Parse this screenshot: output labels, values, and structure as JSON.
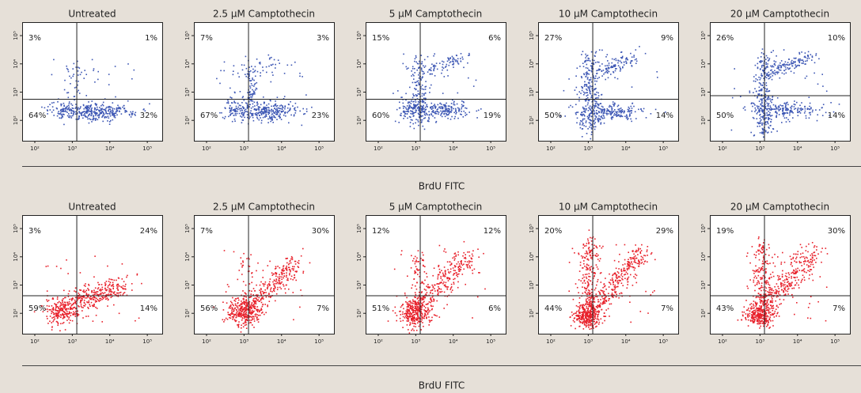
{
  "chart_data": [
    {
      "type": "scatter",
      "title": "Untreated",
      "color": "#3c56b4",
      "xscale": "log",
      "yscale": "log",
      "xlim": [
        46,
        250000
      ],
      "ylim": [
        19,
        300000
      ],
      "xticks": [
        {
          "value": 100,
          "label": "10²"
        },
        {
          "value": 1000,
          "label": "10³"
        },
        {
          "value": 10000,
          "label": "10⁴"
        },
        {
          "value": 100000,
          "label": "10⁵"
        }
      ],
      "yticks": [
        {
          "value": 100,
          "label": "10²"
        },
        {
          "value": 1000,
          "label": "10³"
        },
        {
          "value": 10000,
          "label": "10⁴"
        },
        {
          "value": 100000,
          "label": "10⁵"
        }
      ],
      "quadrant_values": [
        3,
        1,
        64,
        32
      ],
      "value_labels": [
        "3%",
        "1%",
        "64%",
        "32%"
      ]
    },
    {
      "type": "scatter",
      "title": "2.5 μM Camptothecin",
      "color": "#3c56b4",
      "xscale": "log",
      "yscale": "log",
      "xlim": [
        46,
        250000
      ],
      "ylim": [
        19,
        300000
      ],
      "xticks": [
        {
          "value": 100,
          "label": "10²"
        },
        {
          "value": 1000,
          "label": "10³"
        },
        {
          "value": 10000,
          "label": "10⁴"
        },
        {
          "value": 100000,
          "label": "10⁵"
        }
      ],
      "yticks": [
        {
          "value": 100,
          "label": "10²"
        },
        {
          "value": 1000,
          "label": "10³"
        },
        {
          "value": 10000,
          "label": "10⁴"
        },
        {
          "value": 100000,
          "label": "10⁵"
        }
      ],
      "quadrant_values": [
        7,
        3,
        67,
        23
      ],
      "value_labels": [
        "7%",
        "3%",
        "67%",
        "23%"
      ]
    },
    {
      "type": "scatter",
      "title": "5 μM Camptothecin",
      "color": "#3c56b4",
      "xscale": "log",
      "yscale": "log",
      "xlim": [
        46,
        250000
      ],
      "ylim": [
        19,
        300000
      ],
      "xticks": [
        {
          "value": 100,
          "label": "10²"
        },
        {
          "value": 1000,
          "label": "10³"
        },
        {
          "value": 10000,
          "label": "10⁴"
        },
        {
          "value": 100000,
          "label": "10⁵"
        }
      ],
      "yticks": [
        {
          "value": 100,
          "label": "10²"
        },
        {
          "value": 1000,
          "label": "10³"
        },
        {
          "value": 10000,
          "label": "10⁴"
        },
        {
          "value": 100000,
          "label": "10⁵"
        }
      ],
      "quadrant_values": [
        15,
        6,
        60,
        19
      ],
      "value_labels": [
        "15%",
        "6%",
        "60%",
        "19%"
      ]
    },
    {
      "type": "scatter",
      "title": "10 μM Camptothecin",
      "color": "#3c56b4",
      "xscale": "log",
      "yscale": "log",
      "xlim": [
        46,
        250000
      ],
      "ylim": [
        19,
        300000
      ],
      "xticks": [
        {
          "value": 100,
          "label": "10²"
        },
        {
          "value": 1000,
          "label": "10³"
        },
        {
          "value": 10000,
          "label": "10⁴"
        },
        {
          "value": 100000,
          "label": "10⁵"
        }
      ],
      "yticks": [
        {
          "value": 100,
          "label": "10²"
        },
        {
          "value": 1000,
          "label": "10³"
        },
        {
          "value": 10000,
          "label": "10⁴"
        },
        {
          "value": 100000,
          "label": "10⁵"
        }
      ],
      "quadrant_values": [
        27,
        9,
        50,
        14
      ],
      "value_labels": [
        "27%",
        "9%",
        "50%",
        "14%"
      ]
    },
    {
      "type": "scatter",
      "title": "20 μM Camptothecin",
      "color": "#3c56b4",
      "xscale": "log",
      "yscale": "log",
      "xlim": [
        46,
        250000
      ],
      "ylim": [
        19,
        300000
      ],
      "xticks": [
        {
          "value": 100,
          "label": "10²"
        },
        {
          "value": 1000,
          "label": "10³"
        },
        {
          "value": 10000,
          "label": "10⁴"
        },
        {
          "value": 100000,
          "label": "10⁵"
        }
      ],
      "yticks": [
        {
          "value": 100,
          "label": "10²"
        },
        {
          "value": 1000,
          "label": "10³"
        },
        {
          "value": 10000,
          "label": "10⁴"
        },
        {
          "value": 100000,
          "label": "10⁵"
        }
      ],
      "quadrant_values": [
        26,
        10,
        50,
        14
      ],
      "value_labels": [
        "26%",
        "10%",
        "50%",
        "14%"
      ]
    },
    {
      "type": "scatter",
      "title": "Untreated",
      "color": "#e8202a",
      "xscale": "log",
      "yscale": "log",
      "xlim": [
        46,
        250000
      ],
      "ylim": [
        19,
        300000
      ],
      "xticks": [
        {
          "value": 100,
          "label": "10²"
        },
        {
          "value": 1000,
          "label": "10³"
        },
        {
          "value": 10000,
          "label": "10⁴"
        },
        {
          "value": 100000,
          "label": "10⁵"
        }
      ],
      "yticks": [
        {
          "value": 100,
          "label": "10²"
        },
        {
          "value": 1000,
          "label": "10³"
        },
        {
          "value": 10000,
          "label": "10⁴"
        },
        {
          "value": 100000,
          "label": "10⁵"
        }
      ],
      "quadrant_values": [
        3,
        24,
        59,
        14
      ],
      "value_labels": [
        "3%",
        "24%",
        "59%",
        "14%"
      ]
    },
    {
      "type": "scatter",
      "title": "2.5 μM Camptothecin",
      "color": "#e8202a",
      "xscale": "log",
      "yscale": "log",
      "xlim": [
        46,
        250000
      ],
      "ylim": [
        19,
        300000
      ],
      "xticks": [
        {
          "value": 100,
          "label": "10²"
        },
        {
          "value": 1000,
          "label": "10³"
        },
        {
          "value": 10000,
          "label": "10⁴"
        },
        {
          "value": 100000,
          "label": "10⁵"
        }
      ],
      "yticks": [
        {
          "value": 100,
          "label": "10²"
        },
        {
          "value": 1000,
          "label": "10³"
        },
        {
          "value": 10000,
          "label": "10⁴"
        },
        {
          "value": 100000,
          "label": "10⁵"
        }
      ],
      "quadrant_values": [
        7,
        30,
        56,
        7
      ],
      "value_labels": [
        "7%",
        "30%",
        "56%",
        "7%"
      ]
    },
    {
      "type": "scatter",
      "title": "5 μM Camptothecin",
      "color": "#e8202a",
      "xscale": "log",
      "yscale": "log",
      "xlim": [
        46,
        250000
      ],
      "ylim": [
        19,
        300000
      ],
      "xticks": [
        {
          "value": 100,
          "label": "10²"
        },
        {
          "value": 1000,
          "label": "10³"
        },
        {
          "value": 10000,
          "label": "10⁴"
        },
        {
          "value": 100000,
          "label": "10⁵"
        }
      ],
      "yticks": [
        {
          "value": 100,
          "label": "10²"
        },
        {
          "value": 1000,
          "label": "10³"
        },
        {
          "value": 10000,
          "label": "10⁴"
        },
        {
          "value": 100000,
          "label": "10⁵"
        }
      ],
      "quadrant_values": [
        12,
        12,
        51,
        6
      ],
      "value_labels": [
        "12%",
        "12%",
        "51%",
        "6%"
      ]
    },
    {
      "type": "scatter",
      "title": "10 μM Camptothecin",
      "color": "#e8202a",
      "xscale": "log",
      "yscale": "log",
      "xlim": [
        46,
        250000
      ],
      "ylim": [
        19,
        300000
      ],
      "xticks": [
        {
          "value": 100,
          "label": "10²"
        },
        {
          "value": 1000,
          "label": "10³"
        },
        {
          "value": 10000,
          "label": "10⁴"
        },
        {
          "value": 100000,
          "label": "10⁵"
        }
      ],
      "yticks": [
        {
          "value": 100,
          "label": "10²"
        },
        {
          "value": 1000,
          "label": "10³"
        },
        {
          "value": 10000,
          "label": "10⁴"
        },
        {
          "value": 100000,
          "label": "10⁵"
        }
      ],
      "quadrant_values": [
        20,
        29,
        44,
        7
      ],
      "value_labels": [
        "20%",
        "29%",
        "44%",
        "7%"
      ]
    },
    {
      "type": "scatter",
      "title": "20 μM Camptothecin",
      "color": "#e8202a",
      "xscale": "log",
      "yscale": "log",
      "xlim": [
        46,
        250000
      ],
      "ylim": [
        19,
        300000
      ],
      "xticks": [
        {
          "value": 100,
          "label": "10²"
        },
        {
          "value": 1000,
          "label": "10³"
        },
        {
          "value": 10000,
          "label": "10⁴"
        },
        {
          "value": 100000,
          "label": "10⁵"
        }
      ],
      "yticks": [
        {
          "value": 100,
          "label": "10²"
        },
        {
          "value": 1000,
          "label": "10³"
        },
        {
          "value": 10000,
          "label": "10⁴"
        },
        {
          "value": 100000,
          "label": "10⁵"
        }
      ],
      "quadrant_values": [
        19,
        30,
        43,
        7
      ],
      "value_labels": [
        "19%",
        "30%",
        "43%",
        "7%"
      ]
    }
  ],
  "x_axis_labels": [
    "BrdU FITC",
    "BrdU FITC"
  ]
}
